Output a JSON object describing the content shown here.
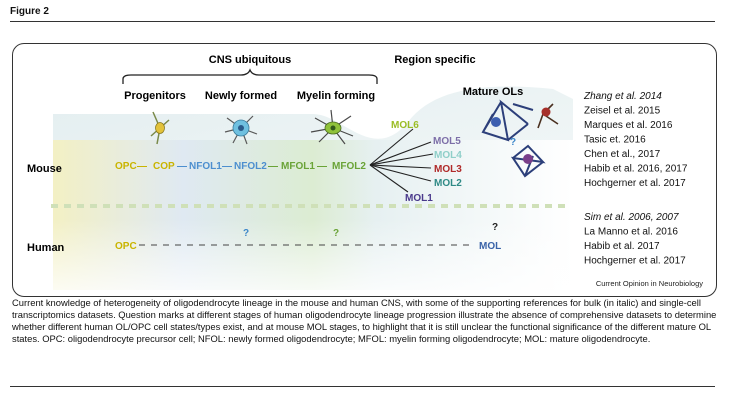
{
  "figure": {
    "title": "Figure 2",
    "caption": "Current knowledge of heterogeneity of oligodendrocyte lineage in the mouse and human CNS, with some of the supporting references for bulk (in italic) and single-cell transcriptomics datasets. Question marks at different stages of human oligodendrocyte lineage progression illustrate the absence of comprehensive datasets to determine whether different human OL/OPC cell states/types exist, and at mouse MOL stages, to highlight that it is still unclear the functional significance of the different mature OL states. OPC: oligodendrocyte precursor cell; NFOL: newly formed oligodendrocyte; MFOL: myelin forming oligodendrocyte; MOL: mature oligodendrocyte.",
    "credit": "Current Opinion in Neurobiology"
  },
  "headers": {
    "cns": "CNS ubiquitous",
    "region": "Region specific",
    "progenitors": "Progenitors",
    "newly_formed": "Newly formed",
    "myelin_forming": "Myelin forming",
    "mature": "Mature OLs"
  },
  "rows": {
    "mouse": "Mouse",
    "human": "Human"
  },
  "mouse_chain": {
    "opc": "OPC",
    "cop": "COP",
    "nfol1": "NFOL1",
    "nfol2": "NFOL2",
    "mfol1": "MFOL1",
    "mfol2": "MFOL2",
    "sep": "—"
  },
  "mol_states": [
    {
      "label": "MOL6",
      "color": "#9bbd26"
    },
    {
      "label": "MOL5",
      "color": "#7d6fa8"
    },
    {
      "label": "MOL4",
      "color": "#8fcfc9"
    },
    {
      "label": "MOL3",
      "color": "#b02a2a"
    },
    {
      "label": "MOL2",
      "color": "#2f8a86"
    },
    {
      "label": "MOL1",
      "color": "#4a3a8c"
    }
  ],
  "human_chain": {
    "opc": "OPC",
    "mol": "MOL",
    "q": "?"
  },
  "refs_mouse": [
    {
      "text": "Zhang et al. 2014",
      "italic": true
    },
    {
      "text": "Zeisel et al. 2015",
      "italic": false
    },
    {
      "text": "Marques et al. 2016",
      "italic": false
    },
    {
      "text": "Tasic et. 2016",
      "italic": false
    },
    {
      "text": "Chen et al., 2017",
      "italic": false
    },
    {
      "text": "Habib et al. 2016, 2017",
      "italic": false
    },
    {
      "text": "Hochgerner et al. 2017",
      "italic": false
    }
  ],
  "refs_human": [
    {
      "text": "Sim et al. 2006, 2007",
      "italic": true
    },
    {
      "text": "La Manno et al. 2016",
      "italic": false
    },
    {
      "text": "Habib et al. 2017",
      "italic": false
    },
    {
      "text": "Hochgerner et al. 2017",
      "italic": false
    }
  ],
  "colors": {
    "opc": "#c9b400",
    "nfol": "#4d8fcf",
    "mfol": "#6aa337",
    "mol_human": "#3a63a8",
    "q": "#3c86c9"
  }
}
